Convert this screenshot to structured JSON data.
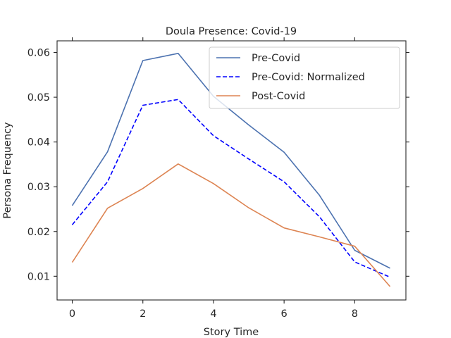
{
  "chart_data": {
    "type": "line",
    "title": "Doula Presence: Covid-19",
    "xlabel": "Story Time",
    "ylabel": "Persona Frequency",
    "x": [
      0,
      1,
      2,
      3,
      4,
      5,
      6,
      7,
      8,
      9
    ],
    "xlim": [
      -0.43,
      9.45
    ],
    "ylim": [
      0.0047,
      0.0626
    ],
    "xticks": [
      0,
      2,
      4,
      6,
      8
    ],
    "yticks": [
      0.01,
      0.02,
      0.03,
      0.04,
      0.05,
      0.06
    ],
    "xtick_labels": [
      "0",
      "2",
      "4",
      "6",
      "8"
    ],
    "ytick_labels": [
      "0.01",
      "0.02",
      "0.03",
      "0.04",
      "0.05",
      "0.06"
    ],
    "grid": false,
    "legend_position": "top-right",
    "series": [
      {
        "name": "Pre-Covid",
        "color": "#4c72b0",
        "style": "solid",
        "values": [
          0.0258,
          0.0378,
          0.0582,
          0.0598,
          0.0502,
          0.0438,
          0.0377,
          0.0281,
          0.0158,
          0.0118
        ]
      },
      {
        "name": "Pre-Covid: Normalized",
        "color": "#0000ff",
        "style": "dashed",
        "values": [
          0.0215,
          0.0311,
          0.0482,
          0.0495,
          0.0414,
          0.0362,
          0.0311,
          0.0233,
          0.0132,
          0.0098
        ]
      },
      {
        "name": "Post-Covid",
        "color": "#dd8452",
        "style": "solid",
        "values": [
          0.0131,
          0.0252,
          0.0296,
          0.0351,
          0.0307,
          0.0253,
          0.0208,
          0.0188,
          0.0167,
          0.0077
        ]
      }
    ]
  }
}
